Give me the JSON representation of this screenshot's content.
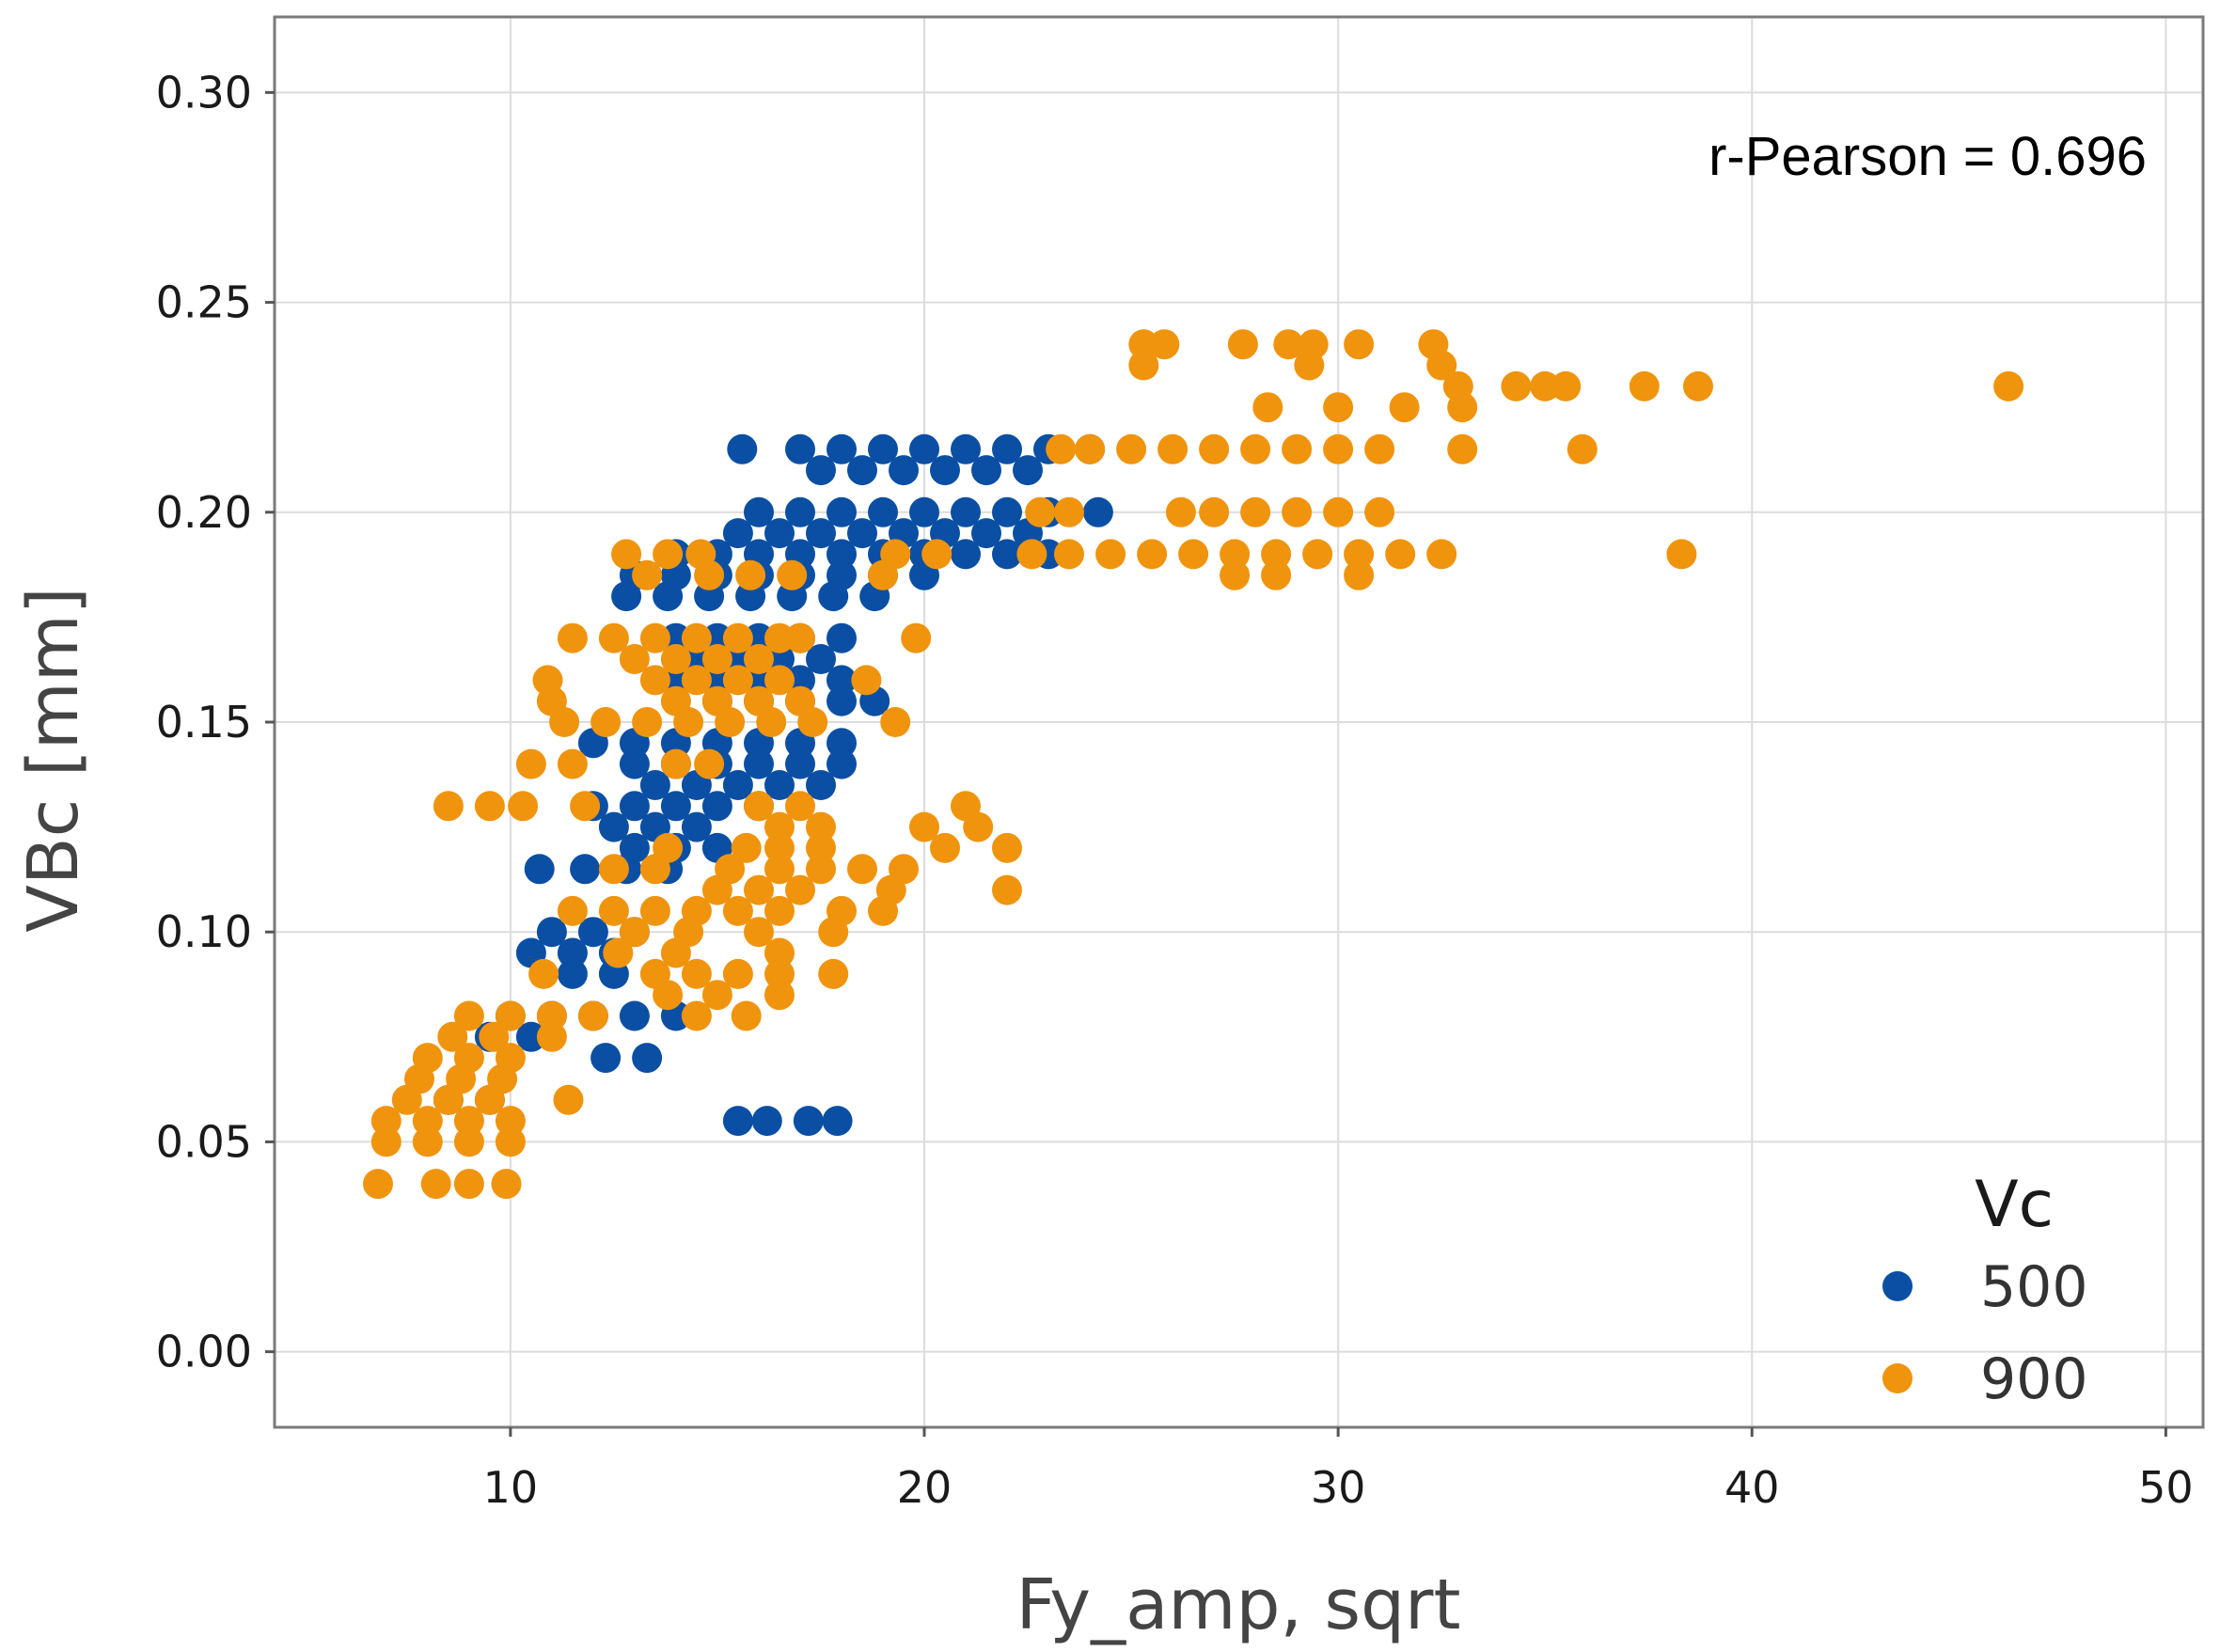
{
  "chart_data": {
    "type": "scatter",
    "xlabel": "Fy_amp, sqrt",
    "ylabel": "VBc [mm]",
    "xlim": [
      4.3,
      50.9
    ],
    "ylim": [
      -0.018,
      0.318
    ],
    "x_ticks": [
      10,
      20,
      30,
      40,
      50
    ],
    "x_tick_labels": [
      "10",
      "20",
      "30",
      "40",
      "50"
    ],
    "y_ticks": [
      0.0,
      0.05,
      0.1,
      0.15,
      0.2,
      0.25,
      0.3
    ],
    "y_tick_labels": [
      "0.00",
      "0.05",
      "0.10",
      "0.15",
      "0.20",
      "0.25",
      "0.30"
    ],
    "grid": true,
    "annotation": "r-Pearson = 0.696",
    "legend": {
      "title": "Vc",
      "position": "bottom-right"
    },
    "series": [
      {
        "name": "500",
        "color": "#0a4fa3",
        "points": [
          [
            15.6,
            0.215
          ],
          [
            17.0,
            0.215
          ],
          [
            18.0,
            0.215
          ],
          [
            19.0,
            0.215
          ],
          [
            20.0,
            0.215
          ],
          [
            21.0,
            0.215
          ],
          [
            22.0,
            0.215
          ],
          [
            23.0,
            0.215
          ],
          [
            24.0,
            0.215
          ],
          [
            17.5,
            0.21
          ],
          [
            18.5,
            0.21
          ],
          [
            19.5,
            0.21
          ],
          [
            20.5,
            0.21
          ],
          [
            21.5,
            0.21
          ],
          [
            22.5,
            0.21
          ],
          [
            16.0,
            0.2
          ],
          [
            17.0,
            0.2
          ],
          [
            18.0,
            0.2
          ],
          [
            19.0,
            0.2
          ],
          [
            20.0,
            0.2
          ],
          [
            21.0,
            0.2
          ],
          [
            22.0,
            0.2
          ],
          [
            23.0,
            0.2
          ],
          [
            24.2,
            0.2
          ],
          [
            15.5,
            0.195
          ],
          [
            16.5,
            0.195
          ],
          [
            17.5,
            0.195
          ],
          [
            18.5,
            0.195
          ],
          [
            19.5,
            0.195
          ],
          [
            20.5,
            0.195
          ],
          [
            21.5,
            0.195
          ],
          [
            22.5,
            0.195
          ],
          [
            14.0,
            0.19
          ],
          [
            15.0,
            0.19
          ],
          [
            16.0,
            0.19
          ],
          [
            17.0,
            0.19
          ],
          [
            18.0,
            0.19
          ],
          [
            19.0,
            0.19
          ],
          [
            20.0,
            0.19
          ],
          [
            21.0,
            0.19
          ],
          [
            22.0,
            0.19
          ],
          [
            23.0,
            0.19
          ],
          [
            13.0,
            0.185
          ],
          [
            14.0,
            0.185
          ],
          [
            15.0,
            0.185
          ],
          [
            16.0,
            0.185
          ],
          [
            17.0,
            0.185
          ],
          [
            18.0,
            0.185
          ],
          [
            19.0,
            0.185
          ],
          [
            20.0,
            0.185
          ],
          [
            12.8,
            0.18
          ],
          [
            13.8,
            0.18
          ],
          [
            14.8,
            0.18
          ],
          [
            15.8,
            0.18
          ],
          [
            16.8,
            0.18
          ],
          [
            17.8,
            0.18
          ],
          [
            18.8,
            0.18
          ],
          [
            14.0,
            0.17
          ],
          [
            15.0,
            0.17
          ],
          [
            16.0,
            0.17
          ],
          [
            17.0,
            0.17
          ],
          [
            18.0,
            0.17
          ],
          [
            14.5,
            0.165
          ],
          [
            15.5,
            0.165
          ],
          [
            16.5,
            0.165
          ],
          [
            17.5,
            0.165
          ],
          [
            14.0,
            0.16
          ],
          [
            15.0,
            0.16
          ],
          [
            16.0,
            0.16
          ],
          [
            17.0,
            0.16
          ],
          [
            18.0,
            0.16
          ],
          [
            15.0,
            0.155
          ],
          [
            16.0,
            0.155
          ],
          [
            17.0,
            0.155
          ],
          [
            18.0,
            0.155
          ],
          [
            18.8,
            0.155
          ],
          [
            12.0,
            0.145
          ],
          [
            13.0,
            0.145
          ],
          [
            14.0,
            0.145
          ],
          [
            15.0,
            0.145
          ],
          [
            16.0,
            0.145
          ],
          [
            17.0,
            0.145
          ],
          [
            18.0,
            0.145
          ],
          [
            13.0,
            0.14
          ],
          [
            14.0,
            0.14
          ],
          [
            15.0,
            0.14
          ],
          [
            16.0,
            0.14
          ],
          [
            17.0,
            0.14
          ],
          [
            18.0,
            0.14
          ],
          [
            13.5,
            0.135
          ],
          [
            14.5,
            0.135
          ],
          [
            15.5,
            0.135
          ],
          [
            16.5,
            0.135
          ],
          [
            17.5,
            0.135
          ],
          [
            12.0,
            0.13
          ],
          [
            13.0,
            0.13
          ],
          [
            14.0,
            0.13
          ],
          [
            15.0,
            0.13
          ],
          [
            16.0,
            0.13
          ],
          [
            12.5,
            0.125
          ],
          [
            13.5,
            0.125
          ],
          [
            14.5,
            0.125
          ],
          [
            13.0,
            0.12
          ],
          [
            14.0,
            0.12
          ],
          [
            15.0,
            0.12
          ],
          [
            10.7,
            0.115
          ],
          [
            11.8,
            0.115
          ],
          [
            12.8,
            0.115
          ],
          [
            13.8,
            0.115
          ],
          [
            11.0,
            0.1
          ],
          [
            12.0,
            0.1
          ],
          [
            13.0,
            0.1
          ],
          [
            10.5,
            0.095
          ],
          [
            11.5,
            0.095
          ],
          [
            12.5,
            0.095
          ],
          [
            11.5,
            0.09
          ],
          [
            12.5,
            0.09
          ],
          [
            10.0,
            0.08
          ],
          [
            11.0,
            0.08
          ],
          [
            12.0,
            0.08
          ],
          [
            13.0,
            0.08
          ],
          [
            14.0,
            0.08
          ],
          [
            9.5,
            0.075
          ],
          [
            10.5,
            0.075
          ],
          [
            12.3,
            0.07
          ],
          [
            13.3,
            0.07
          ],
          [
            8.5,
            0.06
          ],
          [
            9.5,
            0.06
          ],
          [
            15.5,
            0.055
          ],
          [
            16.2,
            0.055
          ],
          [
            17.2,
            0.055
          ],
          [
            17.9,
            0.055
          ]
        ]
      },
      {
        "name": "900",
        "color": "#f0940e",
        "points": [
          [
            25.3,
            0.24
          ],
          [
            25.8,
            0.24
          ],
          [
            27.7,
            0.24
          ],
          [
            28.8,
            0.24
          ],
          [
            29.4,
            0.24
          ],
          [
            30.5,
            0.24
          ],
          [
            32.3,
            0.24
          ],
          [
            25.3,
            0.235
          ],
          [
            29.3,
            0.235
          ],
          [
            32.5,
            0.235
          ],
          [
            32.9,
            0.23
          ],
          [
            34.3,
            0.23
          ],
          [
            35.0,
            0.23
          ],
          [
            35.5,
            0.23
          ],
          [
            37.4,
            0.23
          ],
          [
            38.7,
            0.23
          ],
          [
            46.2,
            0.23
          ],
          [
            28.3,
            0.225
          ],
          [
            30.0,
            0.225
          ],
          [
            31.6,
            0.225
          ],
          [
            33.0,
            0.225
          ],
          [
            23.3,
            0.215
          ],
          [
            24.0,
            0.215
          ],
          [
            25.0,
            0.215
          ],
          [
            26.0,
            0.215
          ],
          [
            27.0,
            0.215
          ],
          [
            28.0,
            0.215
          ],
          [
            29.0,
            0.215
          ],
          [
            30.0,
            0.215
          ],
          [
            31.0,
            0.215
          ],
          [
            33.0,
            0.215
          ],
          [
            35.9,
            0.215
          ],
          [
            22.8,
            0.2
          ],
          [
            23.5,
            0.2
          ],
          [
            26.2,
            0.2
          ],
          [
            27.0,
            0.2
          ],
          [
            28.0,
            0.2
          ],
          [
            29.0,
            0.2
          ],
          [
            30.0,
            0.2
          ],
          [
            31.0,
            0.2
          ],
          [
            12.8,
            0.19
          ],
          [
            13.8,
            0.19
          ],
          [
            14.6,
            0.19
          ],
          [
            19.3,
            0.19
          ],
          [
            20.3,
            0.19
          ],
          [
            22.6,
            0.19
          ],
          [
            23.5,
            0.19
          ],
          [
            24.5,
            0.19
          ],
          [
            25.5,
            0.19
          ],
          [
            26.5,
            0.19
          ],
          [
            27.5,
            0.19
          ],
          [
            28.5,
            0.19
          ],
          [
            29.5,
            0.19
          ],
          [
            30.5,
            0.19
          ],
          [
            31.5,
            0.19
          ],
          [
            32.5,
            0.19
          ],
          [
            38.3,
            0.19
          ],
          [
            13.3,
            0.185
          ],
          [
            14.8,
            0.185
          ],
          [
            15.8,
            0.185
          ],
          [
            16.8,
            0.185
          ],
          [
            19.0,
            0.185
          ],
          [
            27.5,
            0.185
          ],
          [
            28.5,
            0.185
          ],
          [
            30.5,
            0.185
          ],
          [
            11.5,
            0.17
          ],
          [
            12.5,
            0.17
          ],
          [
            13.5,
            0.17
          ],
          [
            14.5,
            0.17
          ],
          [
            15.5,
            0.17
          ],
          [
            16.5,
            0.17
          ],
          [
            17.0,
            0.17
          ],
          [
            19.8,
            0.17
          ],
          [
            13.0,
            0.165
          ],
          [
            14.0,
            0.165
          ],
          [
            15.0,
            0.165
          ],
          [
            16.0,
            0.165
          ],
          [
            10.9,
            0.16
          ],
          [
            13.5,
            0.16
          ],
          [
            14.5,
            0.16
          ],
          [
            15.5,
            0.16
          ],
          [
            16.5,
            0.16
          ],
          [
            18.6,
            0.16
          ],
          [
            11.0,
            0.155
          ],
          [
            14.0,
            0.155
          ],
          [
            15.0,
            0.155
          ],
          [
            16.0,
            0.155
          ],
          [
            17.0,
            0.155
          ],
          [
            11.3,
            0.15
          ],
          [
            12.3,
            0.15
          ],
          [
            13.3,
            0.15
          ],
          [
            14.3,
            0.15
          ],
          [
            15.3,
            0.15
          ],
          [
            16.3,
            0.15
          ],
          [
            17.3,
            0.15
          ],
          [
            19.3,
            0.15
          ],
          [
            10.5,
            0.14
          ],
          [
            11.5,
            0.14
          ],
          [
            14.0,
            0.14
          ],
          [
            14.8,
            0.14
          ],
          [
            8.5,
            0.13
          ],
          [
            9.5,
            0.13
          ],
          [
            10.3,
            0.13
          ],
          [
            11.8,
            0.13
          ],
          [
            16.0,
            0.13
          ],
          [
            17.0,
            0.13
          ],
          [
            21.0,
            0.13
          ],
          [
            16.5,
            0.125
          ],
          [
            17.5,
            0.125
          ],
          [
            20.0,
            0.125
          ],
          [
            21.3,
            0.125
          ],
          [
            13.8,
            0.12
          ],
          [
            15.7,
            0.12
          ],
          [
            16.5,
            0.12
          ],
          [
            17.5,
            0.12
          ],
          [
            20.5,
            0.12
          ],
          [
            22.0,
            0.12
          ],
          [
            12.5,
            0.115
          ],
          [
            13.5,
            0.115
          ],
          [
            15.3,
            0.115
          ],
          [
            16.5,
            0.115
          ],
          [
            17.5,
            0.115
          ],
          [
            18.5,
            0.115
          ],
          [
            19.5,
            0.115
          ],
          [
            15.0,
            0.11
          ],
          [
            16.0,
            0.11
          ],
          [
            17.0,
            0.11
          ],
          [
            19.2,
            0.11
          ],
          [
            22.0,
            0.11
          ],
          [
            11.5,
            0.105
          ],
          [
            12.5,
            0.105
          ],
          [
            13.5,
            0.105
          ],
          [
            14.5,
            0.105
          ],
          [
            15.5,
            0.105
          ],
          [
            16.5,
            0.105
          ],
          [
            18.0,
            0.105
          ],
          [
            19.0,
            0.105
          ],
          [
            13.0,
            0.1
          ],
          [
            14.3,
            0.1
          ],
          [
            16.0,
            0.1
          ],
          [
            17.8,
            0.1
          ],
          [
            12.6,
            0.095
          ],
          [
            14.0,
            0.095
          ],
          [
            16.5,
            0.095
          ],
          [
            10.8,
            0.09
          ],
          [
            13.5,
            0.09
          ],
          [
            14.5,
            0.09
          ],
          [
            15.5,
            0.09
          ],
          [
            16.5,
            0.09
          ],
          [
            17.8,
            0.09
          ],
          [
            13.8,
            0.085
          ],
          [
            15.0,
            0.085
          ],
          [
            16.5,
            0.085
          ],
          [
            9.0,
            0.08
          ],
          [
            10.0,
            0.08
          ],
          [
            11.0,
            0.08
          ],
          [
            12.0,
            0.08
          ],
          [
            14.5,
            0.08
          ],
          [
            15.7,
            0.08
          ],
          [
            8.6,
            0.075
          ],
          [
            9.6,
            0.075
          ],
          [
            11.0,
            0.075
          ],
          [
            8.0,
            0.07
          ],
          [
            9.0,
            0.07
          ],
          [
            10.0,
            0.07
          ],
          [
            7.8,
            0.065
          ],
          [
            8.8,
            0.065
          ],
          [
            9.8,
            0.065
          ],
          [
            7.5,
            0.06
          ],
          [
            8.5,
            0.06
          ],
          [
            9.5,
            0.06
          ],
          [
            11.4,
            0.06
          ],
          [
            7.0,
            0.055
          ],
          [
            8.0,
            0.055
          ],
          [
            9.0,
            0.055
          ],
          [
            10.0,
            0.055
          ],
          [
            7.0,
            0.05
          ],
          [
            8.0,
            0.05
          ],
          [
            9.0,
            0.05
          ],
          [
            10.0,
            0.05
          ],
          [
            6.8,
            0.04
          ],
          [
            8.2,
            0.04
          ],
          [
            9.0,
            0.04
          ],
          [
            9.9,
            0.04
          ]
        ]
      }
    ]
  }
}
